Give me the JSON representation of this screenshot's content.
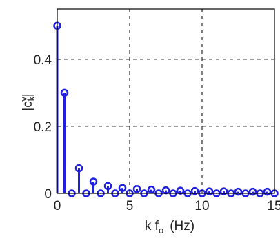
{
  "chart_data": {
    "type": "stem",
    "xlabel": {
      "main": "k f",
      "sub": "o",
      "unit": "(Hz)"
    },
    "ylabel": {
      "main": "|c",
      "sub": "k",
      "sup": "y",
      "close": "|"
    },
    "xlim": [
      0,
      15
    ],
    "ylim": [
      0,
      0.55
    ],
    "xticks": [
      {
        "value": 0,
        "label": "0"
      },
      {
        "value": 5,
        "label": "5"
      },
      {
        "value": 10,
        "label": "10"
      },
      {
        "value": 15,
        "label": "15"
      }
    ],
    "yticks": [
      {
        "value": 0,
        "label": "0"
      },
      {
        "value": 0.2,
        "label": "0.2"
      },
      {
        "value": 0.4,
        "label": "0.4"
      }
    ],
    "grid": true,
    "grid_style": "dashed",
    "color": "#1f1fe0",
    "x": [
      0,
      0.5,
      1,
      1.5,
      2,
      2.5,
      3,
      3.5,
      4,
      4.5,
      5,
      5.5,
      6,
      6.5,
      7,
      7.5,
      8,
      8.5,
      9,
      9.5,
      10,
      10.5,
      11,
      11.5,
      12,
      12.5,
      13,
      13.5,
      14,
      14.5,
      15
    ],
    "values": [
      0.5,
      0.3,
      0.0,
      0.075,
      0.0,
      0.035,
      0.0,
      0.022,
      0.0,
      0.016,
      0.0,
      0.013,
      0.0,
      0.011,
      0.0,
      0.009,
      0.0,
      0.008,
      0.0,
      0.007,
      0.0,
      0.006,
      0.0,
      0.006,
      0.0,
      0.005,
      0.0,
      0.005,
      0.0,
      0.005,
      0.0
    ]
  }
}
